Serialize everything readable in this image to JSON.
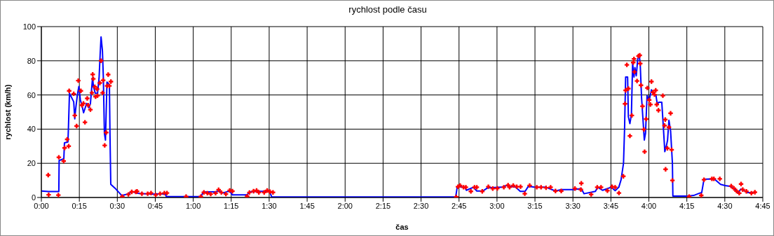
{
  "chart_data": {
    "type": "line",
    "title": "rychlost podle času",
    "xlabel": "čas",
    "ylabel": "rychlost (km/h)",
    "xlim": [
      0,
      4.75
    ],
    "ylim": [
      0,
      100
    ],
    "yticks": [
      0,
      20,
      40,
      60,
      80,
      100
    ],
    "xticks": [
      {
        "value": 0,
        "label": "0:00"
      },
      {
        "value": 0.25,
        "label": "0:15"
      },
      {
        "value": 0.5,
        "label": "0:30"
      },
      {
        "value": 0.75,
        "label": "0:45"
      },
      {
        "value": 1,
        "label": "1:00"
      },
      {
        "value": 1.25,
        "label": "1:15"
      },
      {
        "value": 1.5,
        "label": "1:30"
      },
      {
        "value": 1.75,
        "label": "1:45"
      },
      {
        "value": 2,
        "label": "2:00"
      },
      {
        "value": 2.25,
        "label": "2:15"
      },
      {
        "value": 2.5,
        "label": "2:30"
      },
      {
        "value": 2.75,
        "label": "2:45"
      },
      {
        "value": 3,
        "label": "3:00"
      },
      {
        "value": 3.25,
        "label": "3:15"
      },
      {
        "value": 3.5,
        "label": "3:30"
      },
      {
        "value": 3.75,
        "label": "3:45"
      },
      {
        "value": 4,
        "label": "4:00"
      },
      {
        "value": 4.25,
        "label": "4:15"
      },
      {
        "value": 4.5,
        "label": "4:30"
      },
      {
        "value": 4.75,
        "label": "4:45"
      }
    ],
    "grid": true,
    "series": [
      {
        "color": "#0000ff",
        "marker": "none",
        "line_style": "solid",
        "x": [
          0,
          0.047,
          0.115,
          0.117,
          0.148,
          0.152,
          0.175,
          0.178,
          0.185,
          0.213,
          0.22,
          0.225,
          0.237,
          0.247,
          0.257,
          0.267,
          0.278,
          0.298,
          0.313,
          0.323,
          0.337,
          0.343,
          0.355,
          0.37,
          0.38,
          0.387,
          0.393,
          0.402,
          0.408,
          0.415,
          0.422,
          0.432,
          0.448,
          0.452,
          0.457,
          0.49,
          0.53,
          0.575,
          0.595,
          0.63,
          0.722,
          0.815,
          0.823,
          0.833,
          1.05,
          1.067,
          1.147,
          1.17,
          1.193,
          1.24,
          1.258,
          1.355,
          1.37,
          1.425,
          1.502,
          1.517,
          2.728,
          2.738,
          2.75,
          2.767,
          2.79,
          2.798,
          2.845,
          2.867,
          2.907,
          2.937,
          3.03,
          3.062,
          3.123,
          3.153,
          3.185,
          3.207,
          3.247,
          3.323,
          3.385,
          3.423,
          3.508,
          3.555,
          3.573,
          3.648,
          3.663,
          3.695,
          3.708,
          3.752,
          3.778,
          3.802,
          3.817,
          3.833,
          3.84,
          3.847,
          3.86,
          3.865,
          3.875,
          3.885,
          3.893,
          3.902,
          3.908,
          3.917,
          3.927,
          3.937,
          3.943,
          3.952,
          3.96,
          3.97,
          3.978,
          3.988,
          4.002,
          4.017,
          4.032,
          4.047,
          4.055,
          4.065,
          4.085,
          4.093,
          4.105,
          4.117,
          4.123,
          4.132,
          4.143,
          4.155,
          4.158,
          4.255,
          4.295,
          4.333,
          4.348,
          4.363,
          4.41,
          4.433,
          4.472,
          4.502,
          4.533,
          4.565,
          4.59,
          4.605,
          4.625,
          4.648,
          4.695
        ],
        "values": [
          3.8,
          3.5,
          3.5,
          21.6,
          22.7,
          32,
          32.5,
          40,
          61,
          56,
          46,
          51,
          60,
          65,
          57,
          54,
          49.6,
          55,
          52.5,
          55,
          70,
          65,
          61,
          61,
          70,
          83.5,
          94,
          86,
          70.5,
          37.7,
          33.6,
          67.5,
          66,
          36,
          7.7,
          5,
          1.1,
          2.2,
          3.6,
          2.5,
          1.9,
          2.2,
          0.5,
          0.5,
          0.5,
          3.3,
          3.3,
          3.8,
          2.6,
          3.8,
          1.5,
          1.5,
          3.3,
          3.6,
          3.6,
          0.3,
          0.3,
          6,
          7,
          6,
          6,
          4.2,
          6,
          3.8,
          3.8,
          5.6,
          6,
          7,
          6,
          3.6,
          3.6,
          6.6,
          6,
          6,
          3.8,
          4.6,
          4.6,
          5.2,
          2.2,
          3.6,
          6,
          4.2,
          4.6,
          6,
          4,
          6,
          10.4,
          20,
          40.4,
          70.5,
          70.5,
          47.3,
          43.2,
          48.6,
          78.7,
          70.5,
          76,
          71.2,
          81.4,
          83,
          78,
          58.2,
          47.3,
          33.6,
          37.7,
          59.6,
          56.8,
          63,
          61,
          59.6,
          54.8,
          55.7,
          55.7,
          44.5,
          26.8,
          30.9,
          33.6,
          45.2,
          39,
          20,
          0.8,
          0.8,
          1.2,
          2.5,
          2.9,
          10.7,
          10.9,
          10.7,
          7.7,
          7,
          6.6,
          4.9,
          2.9,
          4.9,
          4.2,
          2.9,
          2.9
        ]
      },
      {
        "type": "scatter",
        "color": "#ff0000",
        "marker": "cross",
        "x": [
          0.045,
          0.048,
          0.112,
          0.115,
          0.147,
          0.153,
          0.17,
          0.18,
          0.183,
          0.213,
          0.22,
          0.232,
          0.243,
          0.26,
          0.267,
          0.277,
          0.287,
          0.302,
          0.308,
          0.323,
          0.333,
          0.338,
          0.342,
          0.352,
          0.357,
          0.367,
          0.37,
          0.385,
          0.393,
          0.403,
          0.407,
          0.417,
          0.427,
          0.433,
          0.44,
          0.448,
          0.458,
          0.533,
          0.573,
          0.595,
          0.622,
          0.63,
          0.662,
          0.7,
          0.722,
          0.753,
          0.782,
          0.81,
          0.827,
          0.953,
          1.05,
          1.07,
          1.093,
          1.115,
          1.147,
          1.167,
          1.185,
          1.215,
          1.24,
          1.258,
          1.355,
          1.37,
          1.397,
          1.417,
          1.432,
          1.467,
          1.487,
          1.505,
          1.525,
          2.732,
          2.743,
          2.757,
          2.78,
          2.795,
          2.828,
          2.852,
          2.867,
          2.903,
          2.943,
          2.972,
          3.002,
          3.045,
          3.073,
          3.083,
          3.107,
          3.13,
          3.155,
          3.183,
          3.215,
          3.262,
          3.29,
          3.323,
          3.353,
          3.385,
          3.423,
          3.513,
          3.552,
          3.555,
          3.62,
          3.66,
          3.685,
          3.727,
          3.758,
          3.778,
          3.803,
          3.832,
          3.843,
          3.847,
          3.855,
          3.865,
          3.875,
          3.888,
          3.897,
          3.902,
          3.905,
          3.922,
          3.932,
          3.94,
          3.943,
          3.948,
          3.958,
          3.967,
          3.972,
          3.982,
          3.99,
          4.002,
          4.01,
          4.017,
          4.027,
          4.037,
          4.045,
          4.052,
          4.063,
          4.092,
          4.103,
          4.108,
          4.11,
          4.122,
          4.132,
          4.143,
          4.15,
          4.155,
          4.265,
          4.345,
          4.363,
          4.415,
          4.428,
          4.467,
          4.542,
          4.56,
          4.577,
          4.595,
          4.607,
          4.618,
          4.642,
          4.675,
          4.698
        ],
        "values": [
          13.1,
          1.6,
          1.4,
          23.5,
          21.3,
          29,
          34,
          30,
          62.4,
          60.7,
          48,
          41.8,
          68.4,
          62.4,
          54,
          55,
          44,
          58,
          54,
          51.4,
          61.2,
          72,
          69.4,
          64.8,
          59,
          63.4,
          59.6,
          67,
          80,
          61.2,
          68.6,
          30.5,
          38,
          65.3,
          71.9,
          65.3,
          67.8,
          0.5,
          1.8,
          3.3,
          3.3,
          3.6,
          2.2,
          2.2,
          2.6,
          1.5,
          2.2,
          2.6,
          2.6,
          0.5,
          0.5,
          3,
          2.5,
          2,
          2.5,
          4.5,
          2.9,
          2,
          4.1,
          3.7,
          0.7,
          2.9,
          3.7,
          4.1,
          3,
          3,
          4.1,
          3.4,
          3,
          0.3,
          6.3,
          7,
          6,
          6,
          3.6,
          6,
          6,
          3.6,
          6.3,
          5.2,
          5.3,
          6,
          7.2,
          6,
          7,
          6.3,
          6.3,
          2.2,
          7,
          6,
          6,
          5.7,
          6,
          3.8,
          3.8,
          5.2,
          4.6,
          8.3,
          1.8,
          6,
          6,
          4,
          6.3,
          6,
          2.6,
          12.4,
          54.8,
          62.7,
          77.6,
          63.7,
          36,
          48,
          79,
          81.1,
          73.5,
          68.2,
          82.8,
          83.2,
          78.4,
          65.7,
          53.4,
          39.8,
          26.8,
          45.9,
          64.1,
          57.1,
          54.4,
          67.8,
          61.6,
          60.2,
          62.7,
          54.4,
          51,
          59.6,
          42.1,
          45.6,
          16.5,
          28.8,
          41.1,
          49.3,
          27.9,
          10,
          0.5,
          1.2,
          10.4,
          10.9,
          10.9,
          10.9,
          6.7,
          5.3,
          3.8,
          2.5,
          7.9,
          4.6,
          3.6,
          2.5,
          3.1
        ]
      }
    ]
  }
}
